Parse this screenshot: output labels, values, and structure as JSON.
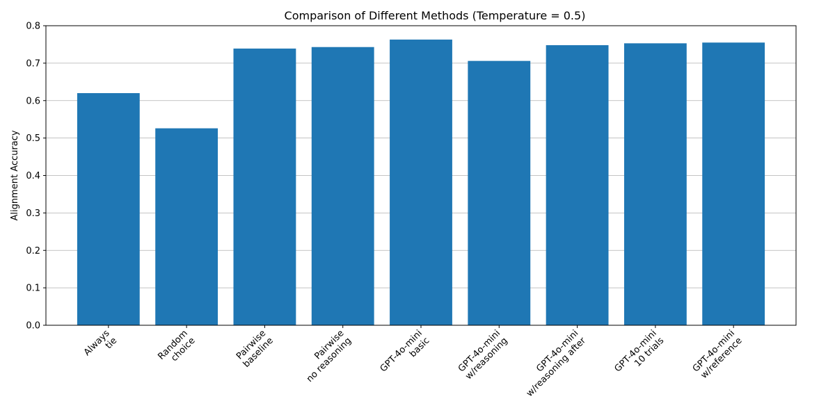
{
  "chart_data": {
    "type": "bar",
    "title": "Comparison of Different Methods (Temperature = 0.5)",
    "xlabel": "",
    "ylabel": "Alignment Accuracy",
    "ylim": [
      0,
      0.8
    ],
    "yticks": [
      "0.0",
      "0.1",
      "0.2",
      "0.3",
      "0.4",
      "0.5",
      "0.6",
      "0.7",
      "0.8"
    ],
    "grid": "y-major",
    "categories": [
      [
        "Always",
        "tie"
      ],
      [
        "Random",
        "choice"
      ],
      [
        "Pairwise",
        "baseline"
      ],
      [
        "Pairwise",
        "no reasoning"
      ],
      [
        "GPT-4o-mini",
        "basic"
      ],
      [
        "GPT-4o-mini",
        "w/reasoning"
      ],
      [
        "GPT-4o-mini",
        "w/reasoning after"
      ],
      [
        "GPT-4o-mini",
        "10 trials"
      ],
      [
        "GPT-4o-mini",
        "w/reference"
      ]
    ],
    "values": [
      0.62,
      0.526,
      0.739,
      0.743,
      0.763,
      0.706,
      0.748,
      0.753,
      0.755
    ],
    "bar_color": "#1f77b4"
  }
}
